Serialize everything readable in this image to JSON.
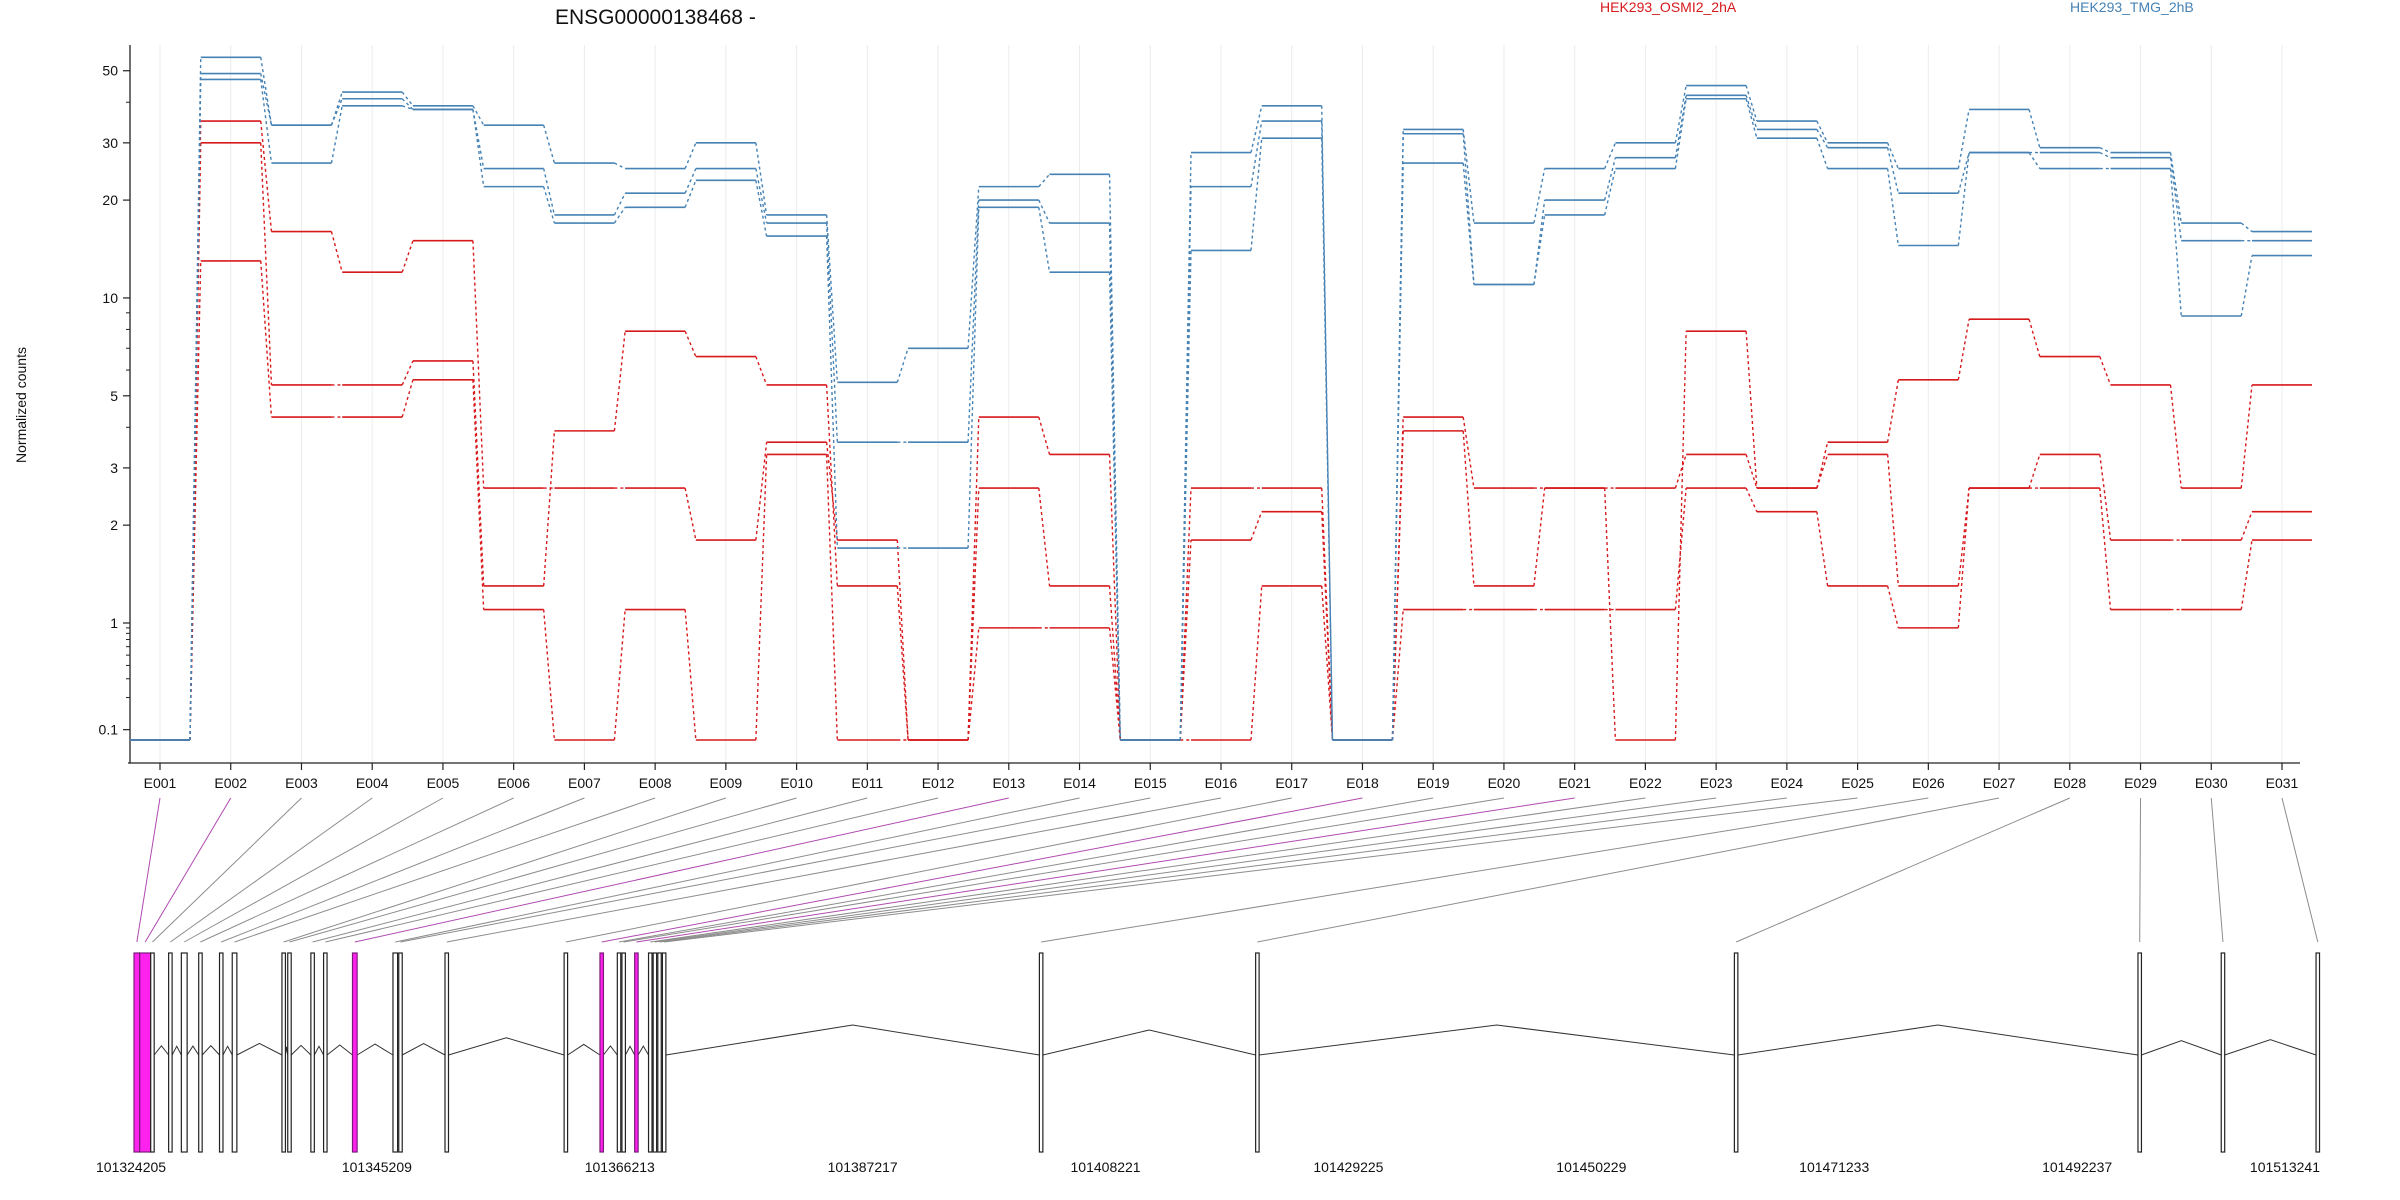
{
  "chart_data": {
    "type": "line",
    "title": "ENSG00000138468 -",
    "ylabel": "Normalized counts",
    "xlabel": "",
    "y_scale": "log",
    "ylim": [
      0.08,
      60
    ],
    "y_ticks": [
      "0.1",
      "1",
      "2",
      "3",
      "5",
      "10",
      "20",
      "30",
      "50"
    ],
    "grid": "vertical, light",
    "legend_placement": "top-right",
    "categories": [
      "E001",
      "E002",
      "E003",
      "E004",
      "E005",
      "E006",
      "E007",
      "E008",
      "E009",
      "E010",
      "E011",
      "E012",
      "E013",
      "E014",
      "E015",
      "E016",
      "E017",
      "E018",
      "E019",
      "E020",
      "E021",
      "E022",
      "E023",
      "E024",
      "E025",
      "E026",
      "E027",
      "E028",
      "E029",
      "E030",
      "E031"
    ],
    "series": [
      {
        "group": "HEK293_OSMI2_2hA",
        "color": "#d7191c",
        "values": [
          0.08,
          35,
          16,
          12,
          15,
          2.6,
          2.6,
          2.6,
          1.8,
          3.6,
          1.8,
          0.08,
          4.3,
          3.3,
          0.08,
          2.6,
          2.6,
          0.08,
          4.3,
          2.6,
          2.6,
          2.6,
          3.3,
          2.6,
          3.6,
          5.6,
          8.6,
          6.6,
          5.4,
          2.6,
          5.4
        ]
      },
      {
        "group": "HEK293_OSMI2_2hA",
        "color": "#d7191c",
        "values": [
          0.08,
          30,
          5.4,
          5.4,
          6.4,
          1.3,
          3.9,
          7.9,
          6.6,
          5.4,
          1.3,
          0.08,
          2.6,
          1.3,
          0.08,
          1.8,
          2.2,
          0.08,
          3.9,
          1.3,
          2.6,
          0.08,
          7.9,
          2.6,
          3.3,
          1.3,
          2.6,
          3.3,
          1.8,
          1.8,
          2.2
        ]
      },
      {
        "group": "HEK293_OSMI2_2hA",
        "color": "#d7191c",
        "values": [
          0.08,
          13,
          4.3,
          4.3,
          5.6,
          1.1,
          0.08,
          1.1,
          0.08,
          3.3,
          0.08,
          0.08,
          0.9,
          0.9,
          0.08,
          0.08,
          1.3,
          0.08,
          1.1,
          1.1,
          1.1,
          1.1,
          2.6,
          2.2,
          1.3,
          0.9,
          2.6,
          2.6,
          1.1,
          1.1,
          1.8
        ]
      },
      {
        "group": "HEK293_TMG_2hB",
        "color": "#4682b4",
        "values": [
          0.08,
          55,
          34,
          43,
          39,
          34,
          26,
          25,
          30,
          18,
          5.5,
          7,
          22,
          24,
          0.08,
          28,
          39,
          0.08,
          33,
          17,
          25,
          30,
          45,
          35,
          30,
          25,
          38,
          29,
          28,
          17,
          16
        ]
      },
      {
        "group": "HEK293_TMG_2hB",
        "color": "#4682b4",
        "values": [
          0.08,
          49,
          34,
          41,
          38,
          25,
          18,
          21,
          25,
          17,
          3.6,
          3.6,
          20,
          17,
          0.08,
          22,
          35,
          0.08,
          32,
          11,
          20,
          27,
          42,
          33,
          29,
          21,
          28,
          28,
          27,
          15,
          15
        ]
      },
      {
        "group": "HEK293_TMG_2hB",
        "color": "#4682b4",
        "values": [
          0.08,
          47,
          26,
          39,
          38,
          22,
          17,
          19,
          23,
          15.5,
          1.7,
          1.7,
          19,
          12,
          0.08,
          14,
          31,
          0.08,
          26,
          11,
          18,
          25,
          41,
          31,
          25,
          14.5,
          28,
          25,
          25,
          8.8,
          13.5
        ]
      }
    ]
  },
  "legend": [
    {
      "label": "HEK293_OSMI2_2hA",
      "color": "#d7191c"
    },
    {
      "label": "HEK293_TMG_2hB",
      "color": "#4682b4"
    }
  ],
  "gene_model": {
    "coord_start": 101324205,
    "coord_end": 101513241,
    "coord_ticks": [
      "101324205",
      "101345209",
      "101366213",
      "101387217",
      "101408221",
      "101429225",
      "101450229",
      "101471233",
      "101492237",
      "101513241"
    ],
    "exons": [
      {
        "id": "E001",
        "start": 101324205,
        "end": 101324700,
        "highlight": true
      },
      {
        "id": "E002",
        "start": 101324700,
        "end": 101325650,
        "highlight": true
      },
      {
        "id": "E003",
        "start": 101325650,
        "end": 101325950,
        "highlight": false
      },
      {
        "id": "E004",
        "start": 101327200,
        "end": 101327500,
        "highlight": false
      },
      {
        "id": "E005",
        "start": 101328300,
        "end": 101328800,
        "highlight": false
      },
      {
        "id": "E006",
        "start": 101329800,
        "end": 101330100,
        "highlight": false
      },
      {
        "id": "E007",
        "start": 101331600,
        "end": 101331900,
        "highlight": false
      },
      {
        "id": "E008",
        "start": 101332700,
        "end": 101333100,
        "highlight": false
      },
      {
        "id": "E009",
        "start": 101337000,
        "end": 101337300,
        "highlight": false
      },
      {
        "id": "E010",
        "start": 101337500,
        "end": 101337800,
        "highlight": false
      },
      {
        "id": "E011",
        "start": 101339500,
        "end": 101339800,
        "highlight": false
      },
      {
        "id": "E012",
        "start": 101340600,
        "end": 101340900,
        "highlight": false
      },
      {
        "id": "E013",
        "start": 101343100,
        "end": 101343500,
        "highlight": true
      },
      {
        "id": "E014",
        "start": 101346600,
        "end": 101347000,
        "highlight": false
      },
      {
        "id": "E015",
        "start": 101347100,
        "end": 101347400,
        "highlight": false
      },
      {
        "id": "E016",
        "start": 101351100,
        "end": 101351400,
        "highlight": false
      },
      {
        "id": "E017",
        "start": 101361400,
        "end": 101361700,
        "highlight": false
      },
      {
        "id": "E018",
        "start": 101364500,
        "end": 101364800,
        "highlight": true
      },
      {
        "id": "E019",
        "start": 101366000,
        "end": 101366300,
        "highlight": false
      },
      {
        "id": "E020",
        "start": 101366400,
        "end": 101366700,
        "highlight": false
      },
      {
        "id": "E021",
        "start": 101367500,
        "end": 101367800,
        "highlight": true
      },
      {
        "id": "E022",
        "start": 101368700,
        "end": 101369000,
        "highlight": false
      },
      {
        "id": "E023",
        "start": 101369100,
        "end": 101369400,
        "highlight": false
      },
      {
        "id": "E024",
        "start": 101369500,
        "end": 101369800,
        "highlight": false
      },
      {
        "id": "E025",
        "start": 101369900,
        "end": 101370200,
        "highlight": false
      },
      {
        "id": "E026",
        "start": 101402500,
        "end": 101402800,
        "highlight": false
      },
      {
        "id": "E027",
        "start": 101421200,
        "end": 101421500,
        "highlight": false
      },
      {
        "id": "E028",
        "start": 101462600,
        "end": 101462900,
        "highlight": false
      },
      {
        "id": "E029",
        "start": 101497500,
        "end": 101497800,
        "highlight": false
      },
      {
        "id": "E030",
        "start": 101504700,
        "end": 101505000,
        "highlight": false
      },
      {
        "id": "E031",
        "start": 101512900,
        "end": 101513200,
        "highlight": false
      }
    ]
  }
}
